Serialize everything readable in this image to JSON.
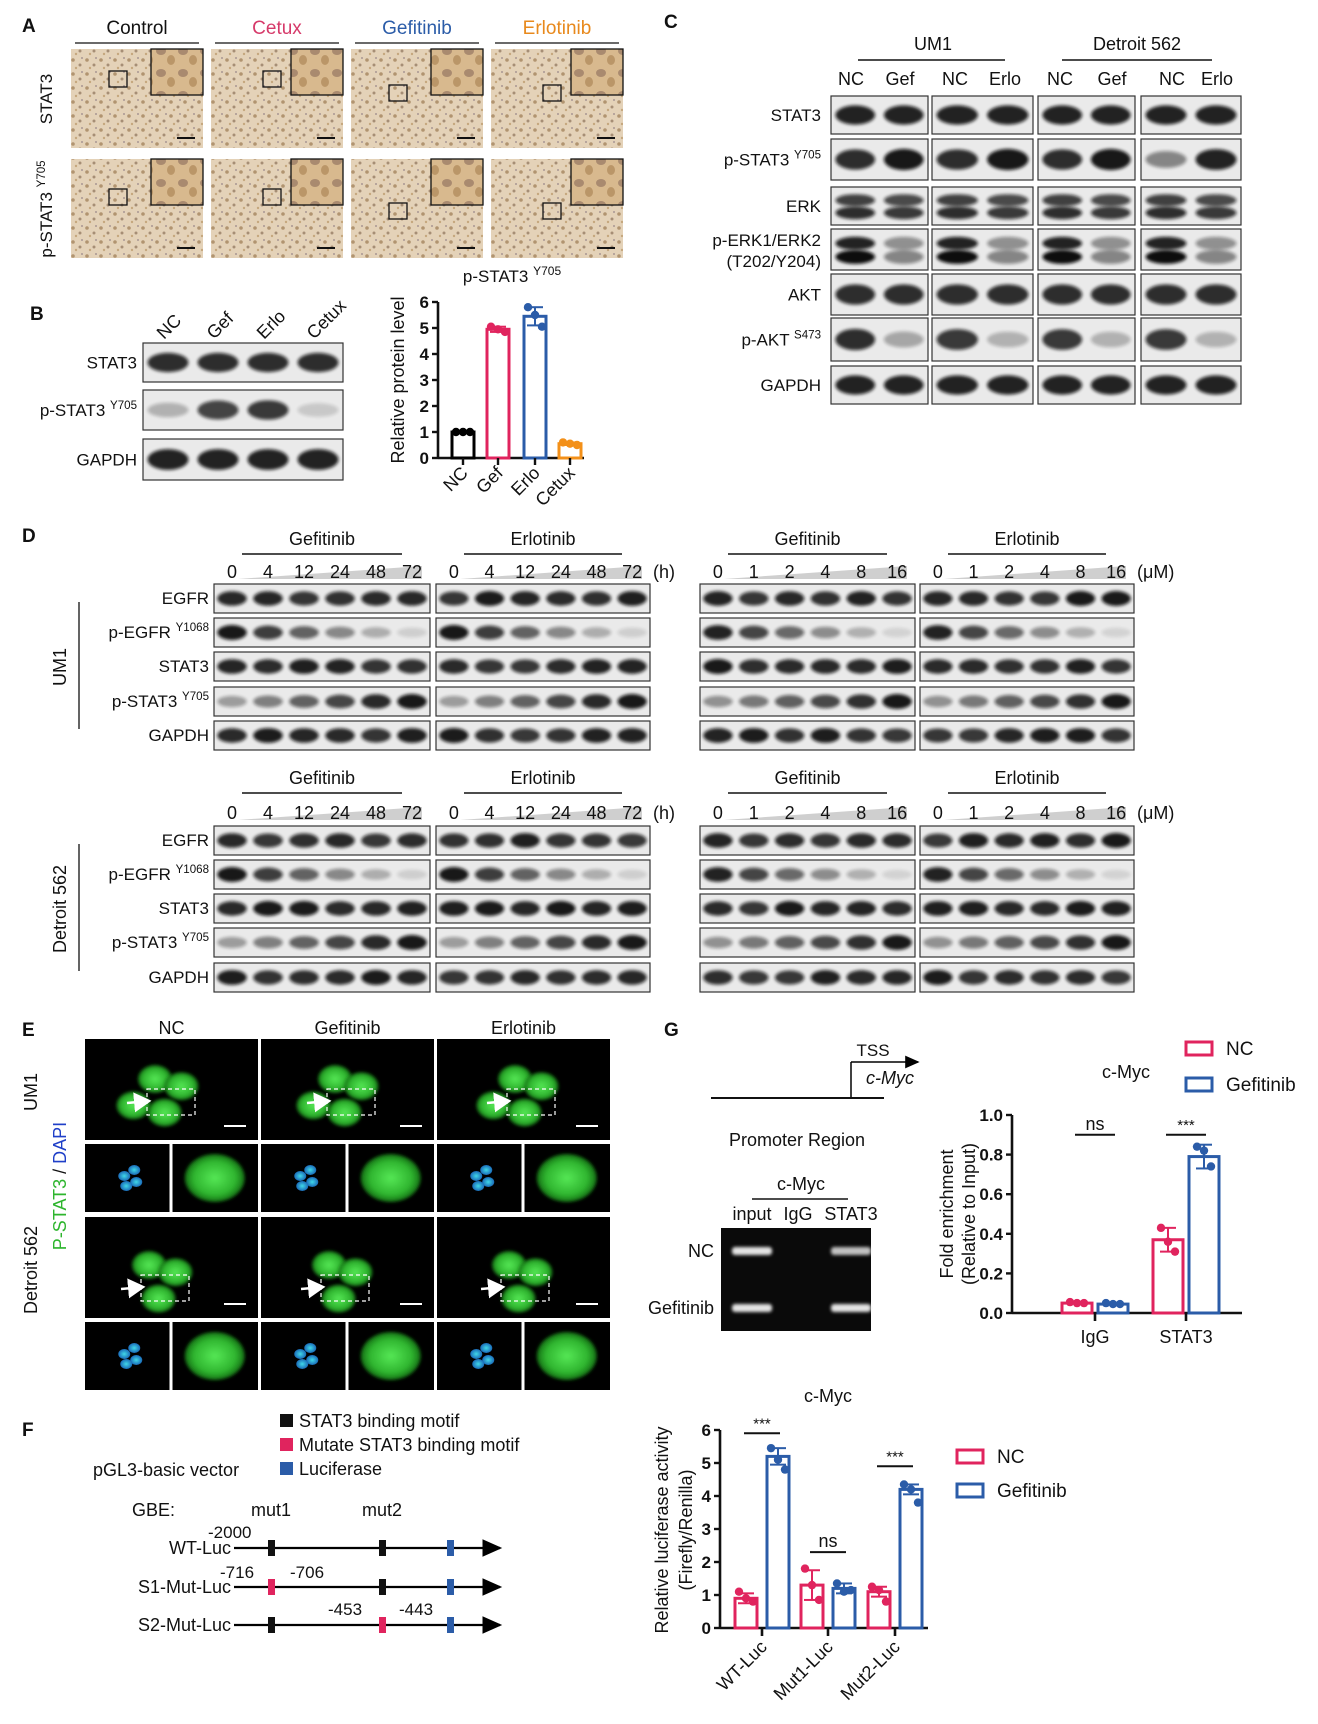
{
  "panel_labels": {
    "A": "A",
    "B": "B",
    "C": "C",
    "D": "D",
    "E": "E",
    "F": "F",
    "G": "G"
  },
  "colors": {
    "nc": "#e0245e",
    "gefitinib": "#2b5ca8",
    "control": "#111111",
    "cetux": "#d63a6a",
    "erlotinib": "#e8891c",
    "b_nc": "#000000",
    "b_gef": "#e0245e",
    "b_erlo": "#2b5ca8",
    "b_cetux": "#f39019",
    "motif": "#111111",
    "mutate_motif": "#e0245e",
    "luciferase": "#2b5ca8"
  },
  "a": {
    "columns": [
      "Control",
      "Cetux",
      "Gefitinib",
      "Erlotinib"
    ],
    "rows": [
      {
        "label": "STAT3",
        "sup": ""
      },
      {
        "label": "p-STAT3 ",
        "sup": "Y705"
      }
    ]
  },
  "b": {
    "lanes": [
      "NC",
      "Gef",
      "Erlo",
      "Cetux"
    ],
    "rows": [
      {
        "label": "STAT3",
        "sup": ""
      },
      {
        "label": "p-STAT3 ",
        "sup": "Y705"
      },
      {
        "label": "GAPDH",
        "sup": ""
      }
    ]
  },
  "c": {
    "groups": [
      "UM1",
      "Detroit 562"
    ],
    "lanes": [
      "NC",
      "Gef",
      "NC",
      "Erlo",
      "NC",
      "Gef",
      "NC",
      "Erlo"
    ],
    "rows": [
      {
        "label": "STAT3",
        "sup": ""
      },
      {
        "label": "p-STAT3 ",
        "sup": "Y705"
      },
      {
        "label": "ERK",
        "sup": ""
      },
      {
        "label": "p-ERK1/ERK2",
        "sup": "",
        "line2": "(T202/Y204)"
      },
      {
        "label": "AKT",
        "sup": ""
      },
      {
        "label": "p-AKT ",
        "sup": "S473"
      },
      {
        "label": "GAPDH",
        "sup": ""
      }
    ]
  },
  "d": {
    "drugs": [
      "Gefitinib",
      "Erlotinib",
      "Gefitinib",
      "Erlotinib"
    ],
    "time_points": [
      "0",
      "4",
      "12",
      "24",
      "48",
      "72"
    ],
    "time_unit": "(h)",
    "doses": [
      "0",
      "1",
      "2",
      "4",
      "8",
      "16"
    ],
    "dose_unit": "(μM)",
    "cell_lines": [
      "UM1",
      "Detroit 562"
    ],
    "rows": [
      {
        "label": "EGFR",
        "sup": ""
      },
      {
        "label": "p-EGFR ",
        "sup": "Y1068"
      },
      {
        "label": "STAT3",
        "sup": ""
      },
      {
        "label": "p-STAT3 ",
        "sup": "Y705"
      },
      {
        "label": "GAPDH",
        "sup": ""
      }
    ]
  },
  "e": {
    "columns": [
      "NC",
      "Gefitinib",
      "Erlotinib"
    ],
    "rows": [
      "UM1",
      "Detroit 562"
    ],
    "stain_1": "P-STAT3",
    "stain_sep": " / ",
    "stain_2": "DAPI"
  },
  "g": {
    "tss": "TSS",
    "gene": "c-Myc",
    "region": "Promoter Region",
    "gel_title": "c-Myc",
    "gel_lanes": [
      "input",
      "IgG",
      "STAT3"
    ],
    "gel_rows": [
      "NC",
      "Gefitinib"
    ]
  },
  "f": {
    "legend": [
      "STAT3 binding motif",
      "Mutate STAT3 binding motif",
      "Luciferase"
    ],
    "vector": "pGL3-basic vector",
    "gbe": "GBE:",
    "mut1": "mut1",
    "mut2": "mut2",
    "constructs": [
      "WT-Luc",
      "S1-Mut-Luc",
      "S2-Mut-Luc"
    ],
    "positions": {
      "wt_start": "-2000",
      "s1_a": "-716",
      "s1_b": "-706",
      "s2_a": "-453",
      "s2_b": "-443"
    }
  },
  "chart_data": [
    {
      "id": "B",
      "type": "bar",
      "title": "p-STAT3 ",
      "title_sup": "Y705",
      "ylabel": "Relative protein level",
      "categories": [
        "NC",
        "Gef",
        "Erlo",
        "Cetux"
      ],
      "values": [
        1.0,
        4.95,
        5.45,
        0.55
      ],
      "errors": [
        0.02,
        0.1,
        0.35,
        0.05
      ],
      "points": [
        [
          1.0,
          1.0,
          1.0
        ],
        [
          5.05,
          4.95,
          4.85
        ],
        [
          5.8,
          5.5,
          5.05
        ],
        [
          0.6,
          0.55,
          0.5
        ]
      ],
      "bar_colors": [
        "#000000",
        "#e0245e",
        "#2b5ca8",
        "#f39019"
      ],
      "ylim": [
        0,
        6
      ],
      "yticks": [
        "0",
        "1",
        "2",
        "3",
        "4",
        "5",
        "6"
      ]
    },
    {
      "id": "G",
      "type": "bar",
      "title": "c-Myc",
      "ylabel": "Fold enrichment",
      "ylabel2": "(Relative to Input)",
      "categories": [
        "IgG",
        "STAT3"
      ],
      "series": [
        {
          "name": "NC",
          "values": [
            0.05,
            0.37
          ],
          "errors": [
            0.005,
            0.06
          ],
          "points": [
            [
              0.055,
              0.05,
              0.05
            ],
            [
              0.43,
              0.36,
              0.31
            ]
          ],
          "color": "#e0245e"
        },
        {
          "name": "Gefitinib",
          "values": [
            0.045,
            0.79
          ],
          "errors": [
            0.005,
            0.06
          ],
          "points": [
            [
              0.05,
              0.045,
              0.045
            ],
            [
              0.84,
              0.82,
              0.74
            ]
          ],
          "color": "#2b5ca8"
        }
      ],
      "significance": [
        {
          "category": "IgG",
          "label": "ns",
          "y": 0.9
        },
        {
          "category": "STAT3",
          "label": "***",
          "y": 0.9
        }
      ],
      "ylim": [
        0,
        1.0
      ],
      "yticks": [
        "0.0",
        "0.2",
        "0.4",
        "0.6",
        "0.8",
        "1.0"
      ],
      "legend": "top-right"
    },
    {
      "id": "F",
      "type": "bar",
      "title": "c-Myc",
      "ylabel": "Relative luciferase activity",
      "ylabel2": "(Firefly/Renilla)",
      "categories": [
        "WT-Luc",
        "Mut1-Luc",
        "Mut2-Luc"
      ],
      "series": [
        {
          "name": "NC",
          "values": [
            0.9,
            1.3,
            1.1
          ],
          "errors": [
            0.15,
            0.45,
            0.15
          ],
          "points": [
            [
              1.1,
              0.9,
              0.8
            ],
            [
              1.8,
              1.3,
              0.85
            ],
            [
              1.25,
              1.15,
              0.8
            ]
          ],
          "color": "#e0245e"
        },
        {
          "name": "Gefitinib",
          "values": [
            5.2,
            1.2,
            4.2
          ],
          "errors": [
            0.25,
            0.15,
            0.15
          ],
          "points": [
            [
              5.45,
              5.1,
              4.8
            ],
            [
              1.35,
              1.1,
              1.15
            ],
            [
              4.35,
              4.2,
              3.8
            ]
          ],
          "color": "#2b5ca8"
        }
      ],
      "significance": [
        {
          "category": "WT-Luc",
          "label": "***",
          "y": 5.9
        },
        {
          "category": "Mut1-Luc",
          "label": "ns",
          "y": 2.3
        },
        {
          "category": "Mut2-Luc",
          "label": "***",
          "y": 4.9
        }
      ],
      "ylim": [
        0,
        6
      ],
      "yticks": [
        "0",
        "1",
        "2",
        "3",
        "4",
        "5",
        "6"
      ],
      "legend": "right"
    }
  ]
}
